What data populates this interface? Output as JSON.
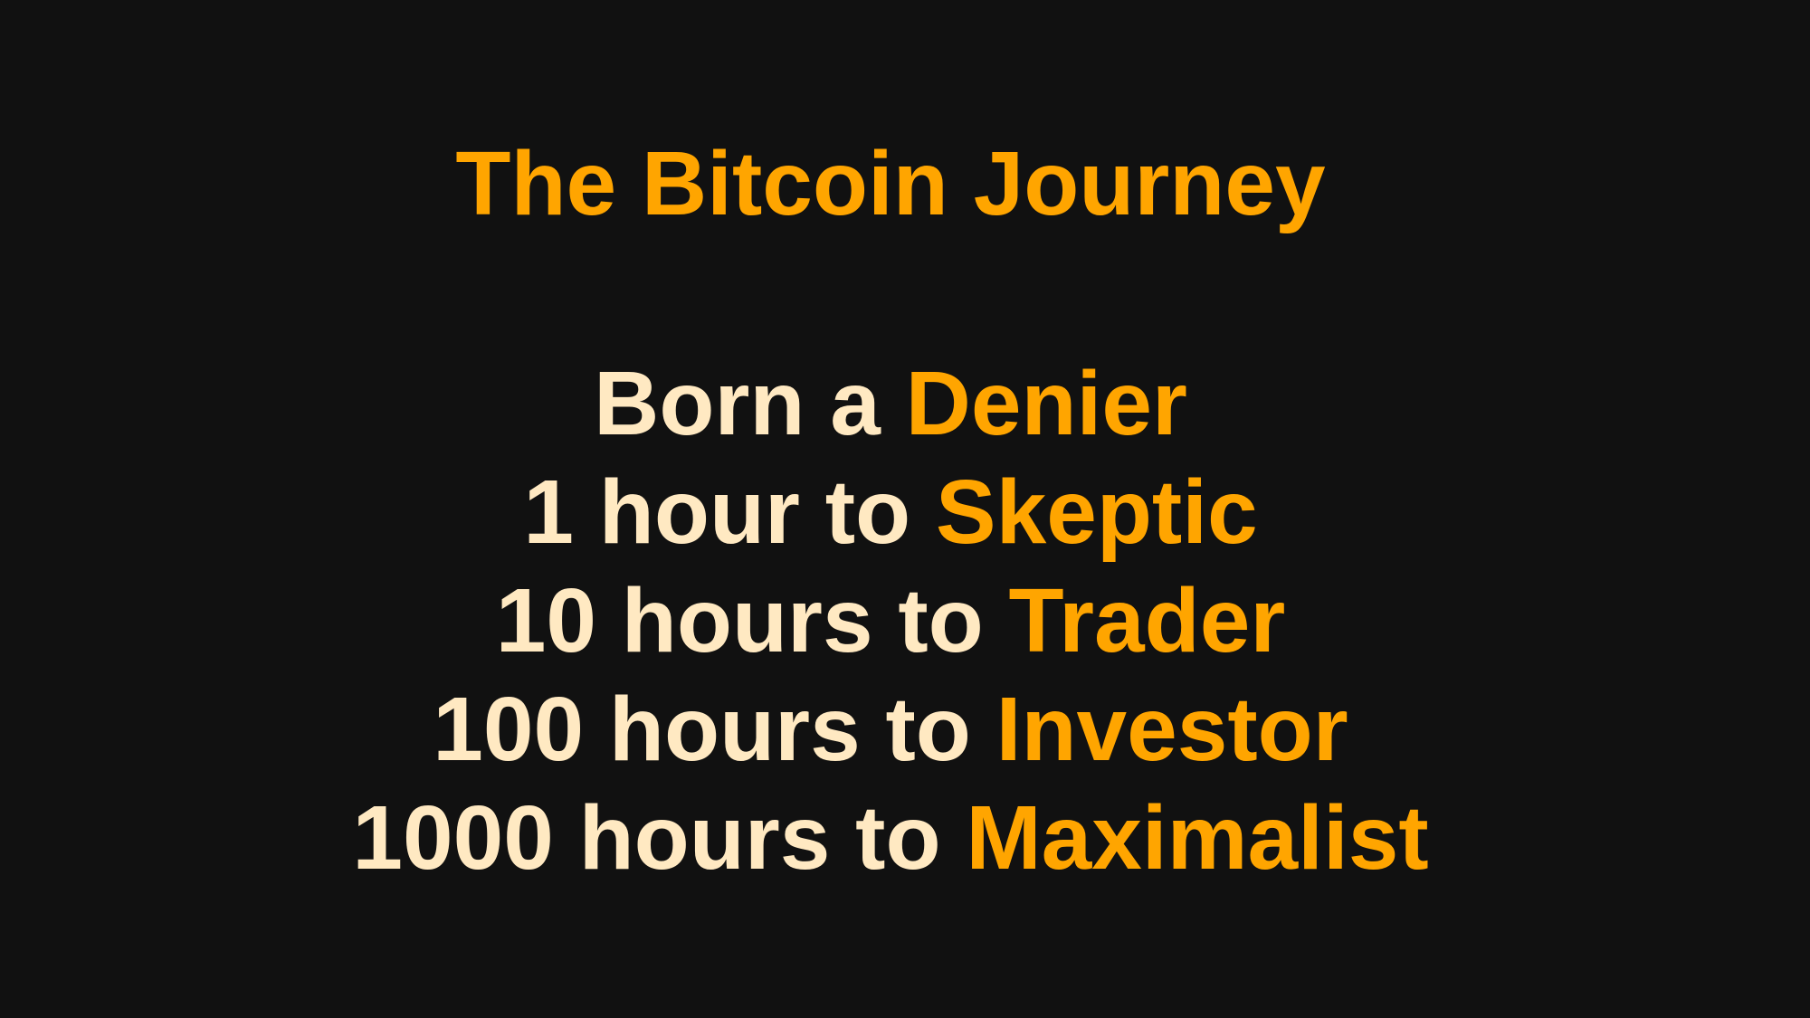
{
  "slide": {
    "title": "The Bitcoin Journey",
    "lines": [
      {
        "lead": "Born a ",
        "stage": "Denier"
      },
      {
        "lead": "1 hour to ",
        "stage": "Skeptic"
      },
      {
        "lead": "10 hours to ",
        "stage": "Trader"
      },
      {
        "lead": "100 hours to ",
        "stage": "Investor"
      },
      {
        "lead": "1000 hours to ",
        "stage": "Maximalist"
      }
    ]
  },
  "colors": {
    "background": "#111111",
    "accent": "#FFA500",
    "text": "#FFE9C2"
  }
}
